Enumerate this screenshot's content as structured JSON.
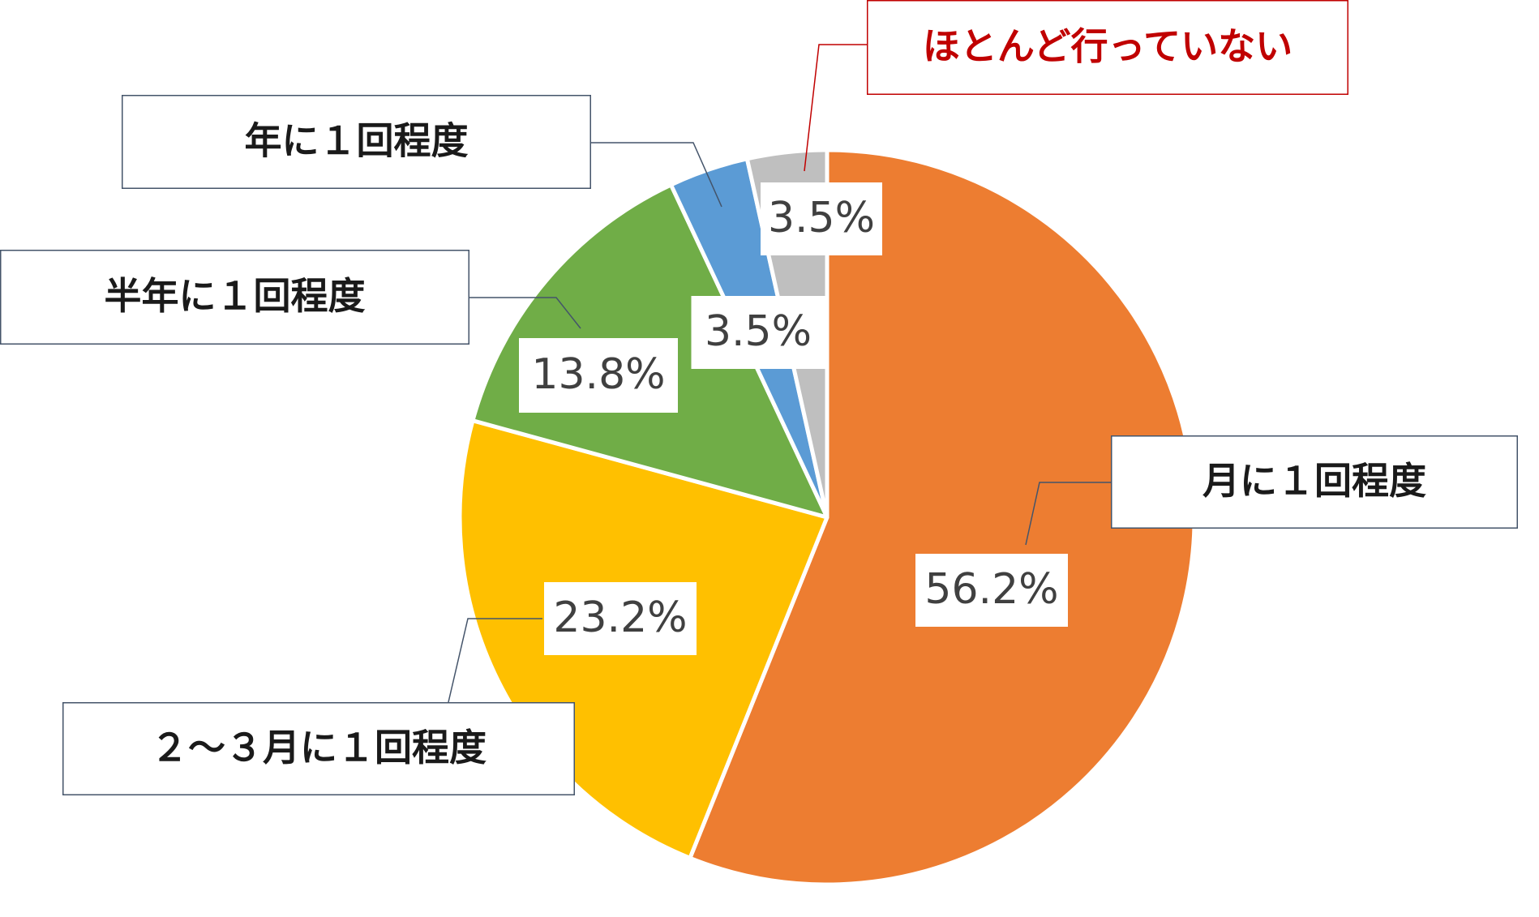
{
  "chart_data": {
    "type": "pie",
    "title": "",
    "start_angle_deg": 0,
    "direction": "clockwise",
    "legend": "none",
    "slices": [
      {
        "label": "月に１回程度",
        "value": 56.2,
        "value_label": "56.2%",
        "color": "#ED7D31"
      },
      {
        "label": "２～３月に１回程度",
        "value": 23.2,
        "value_label": "23.2%",
        "color": "#FFC000"
      },
      {
        "label": "半年に１回程度",
        "value": 13.8,
        "value_label": "13.8%",
        "color": "#70AD47"
      },
      {
        "label": "年に１回程度",
        "value": 3.5,
        "value_label": "3.5%",
        "color": "#5B9BD5"
      },
      {
        "label": "ほとんど行っていない",
        "value": 3.5,
        "value_label": "3.5%",
        "color": "#BFBFBF",
        "label_color": "#C00000"
      }
    ]
  },
  "colors": {
    "slice_border": "#ffffff",
    "category_box_border": "#44546A",
    "category_box_border_highlight": "#C00000",
    "leader_line": "#44546A",
    "leader_line_highlight": "#C00000",
    "value_text": "#404040",
    "category_text": "#1a1a1a"
  }
}
